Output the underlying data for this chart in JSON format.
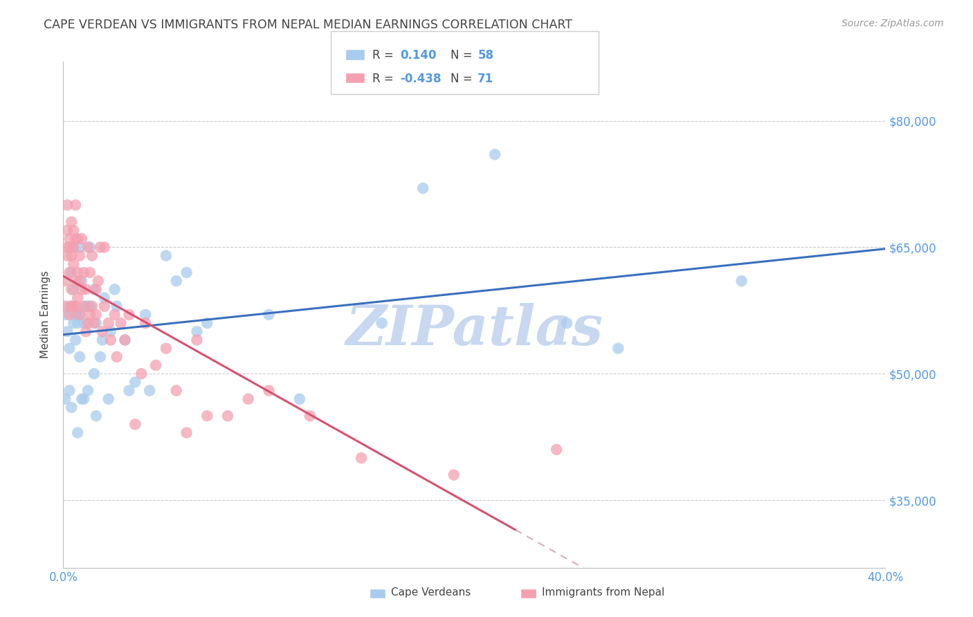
{
  "title": "CAPE VERDEAN VS IMMIGRANTS FROM NEPAL MEDIAN EARNINGS CORRELATION CHART",
  "source": "Source: ZipAtlas.com",
  "ylabel": "Median Earnings",
  "x_min": 0.0,
  "x_max": 0.4,
  "y_min": 27000,
  "y_max": 87000,
  "y_ticks": [
    35000,
    50000,
    65000,
    80000
  ],
  "y_tick_labels": [
    "$35,000",
    "$50,000",
    "$65,000",
    "$80,000"
  ],
  "x_ticks": [
    0.0,
    0.05,
    0.1,
    0.15,
    0.2,
    0.25,
    0.3,
    0.35,
    0.4
  ],
  "x_tick_labels": [
    "0.0%",
    "",
    "",
    "",
    "",
    "",
    "",
    "",
    "40.0%"
  ],
  "blue_color": "#A8CCED",
  "pink_color": "#F4A0B0",
  "blue_line_color": "#3A6FBF",
  "pink_line_color": "#D85070",
  "pink_dash_color": "#D0B0C0",
  "watermark_text": "ZIPatlas",
  "watermark_color": "#C8D8F0",
  "axis_color": "#BBBBBB",
  "grid_color": "#CCCCCC",
  "title_color": "#444444",
  "label_color": "#5599DD",
  "blue_r": 0.14,
  "blue_n": 58,
  "pink_r": -0.438,
  "pink_n": 71,
  "legend_label_blue": "Cape Verdeans",
  "legend_label_pink": "Immigrants from Nepal",
  "blue_x": [
    0.001,
    0.001,
    0.002,
    0.003,
    0.003,
    0.004,
    0.004,
    0.005,
    0.005,
    0.006,
    0.006,
    0.007,
    0.007,
    0.008,
    0.008,
    0.009,
    0.01,
    0.01,
    0.011,
    0.012,
    0.013,
    0.013,
    0.015,
    0.016,
    0.016,
    0.018,
    0.019,
    0.02,
    0.022,
    0.023,
    0.025,
    0.026,
    0.03,
    0.032,
    0.035,
    0.04,
    0.042,
    0.05,
    0.055,
    0.06,
    0.065,
    0.07,
    0.1,
    0.115,
    0.155,
    0.175,
    0.21,
    0.245,
    0.27,
    0.33,
    0.003,
    0.004,
    0.005,
    0.006,
    0.008,
    0.009,
    0.012,
    0.015
  ],
  "blue_y": [
    57000,
    47000,
    55000,
    58000,
    53000,
    46000,
    62000,
    60000,
    56000,
    57000,
    54000,
    56000,
    43000,
    57000,
    65000,
    61000,
    56000,
    47000,
    58000,
    58000,
    58000,
    65000,
    60000,
    56000,
    45000,
    52000,
    54000,
    59000,
    47000,
    55000,
    60000,
    58000,
    54000,
    48000,
    49000,
    57000,
    48000,
    64000,
    61000,
    62000,
    55000,
    56000,
    57000,
    47000,
    56000,
    72000,
    76000,
    56000,
    53000,
    61000,
    48000,
    58000,
    65000,
    57000,
    52000,
    47000,
    48000,
    50000
  ],
  "pink_x": [
    0.001,
    0.001,
    0.002,
    0.002,
    0.002,
    0.002,
    0.003,
    0.003,
    0.003,
    0.003,
    0.004,
    0.004,
    0.004,
    0.004,
    0.005,
    0.005,
    0.005,
    0.005,
    0.006,
    0.006,
    0.006,
    0.006,
    0.007,
    0.007,
    0.007,
    0.008,
    0.008,
    0.008,
    0.009,
    0.009,
    0.01,
    0.01,
    0.011,
    0.011,
    0.012,
    0.012,
    0.013,
    0.013,
    0.014,
    0.014,
    0.015,
    0.016,
    0.016,
    0.017,
    0.018,
    0.019,
    0.02,
    0.02,
    0.022,
    0.023,
    0.025,
    0.026,
    0.028,
    0.03,
    0.032,
    0.035,
    0.038,
    0.04,
    0.045,
    0.05,
    0.055,
    0.06,
    0.065,
    0.07,
    0.08,
    0.09,
    0.1,
    0.12,
    0.145,
    0.19,
    0.24
  ],
  "pink_y": [
    61000,
    58000,
    65000,
    64000,
    67000,
    70000,
    66000,
    57000,
    62000,
    65000,
    68000,
    64000,
    60000,
    58000,
    67000,
    65000,
    63000,
    58000,
    70000,
    66000,
    61000,
    58000,
    62000,
    66000,
    59000,
    64000,
    61000,
    57000,
    60000,
    66000,
    62000,
    58000,
    60000,
    55000,
    65000,
    56000,
    62000,
    57000,
    64000,
    58000,
    56000,
    60000,
    57000,
    61000,
    65000,
    55000,
    58000,
    65000,
    56000,
    54000,
    57000,
    52000,
    56000,
    54000,
    57000,
    44000,
    50000,
    56000,
    51000,
    53000,
    48000,
    43000,
    54000,
    45000,
    45000,
    47000,
    48000,
    45000,
    40000,
    38000,
    41000
  ]
}
